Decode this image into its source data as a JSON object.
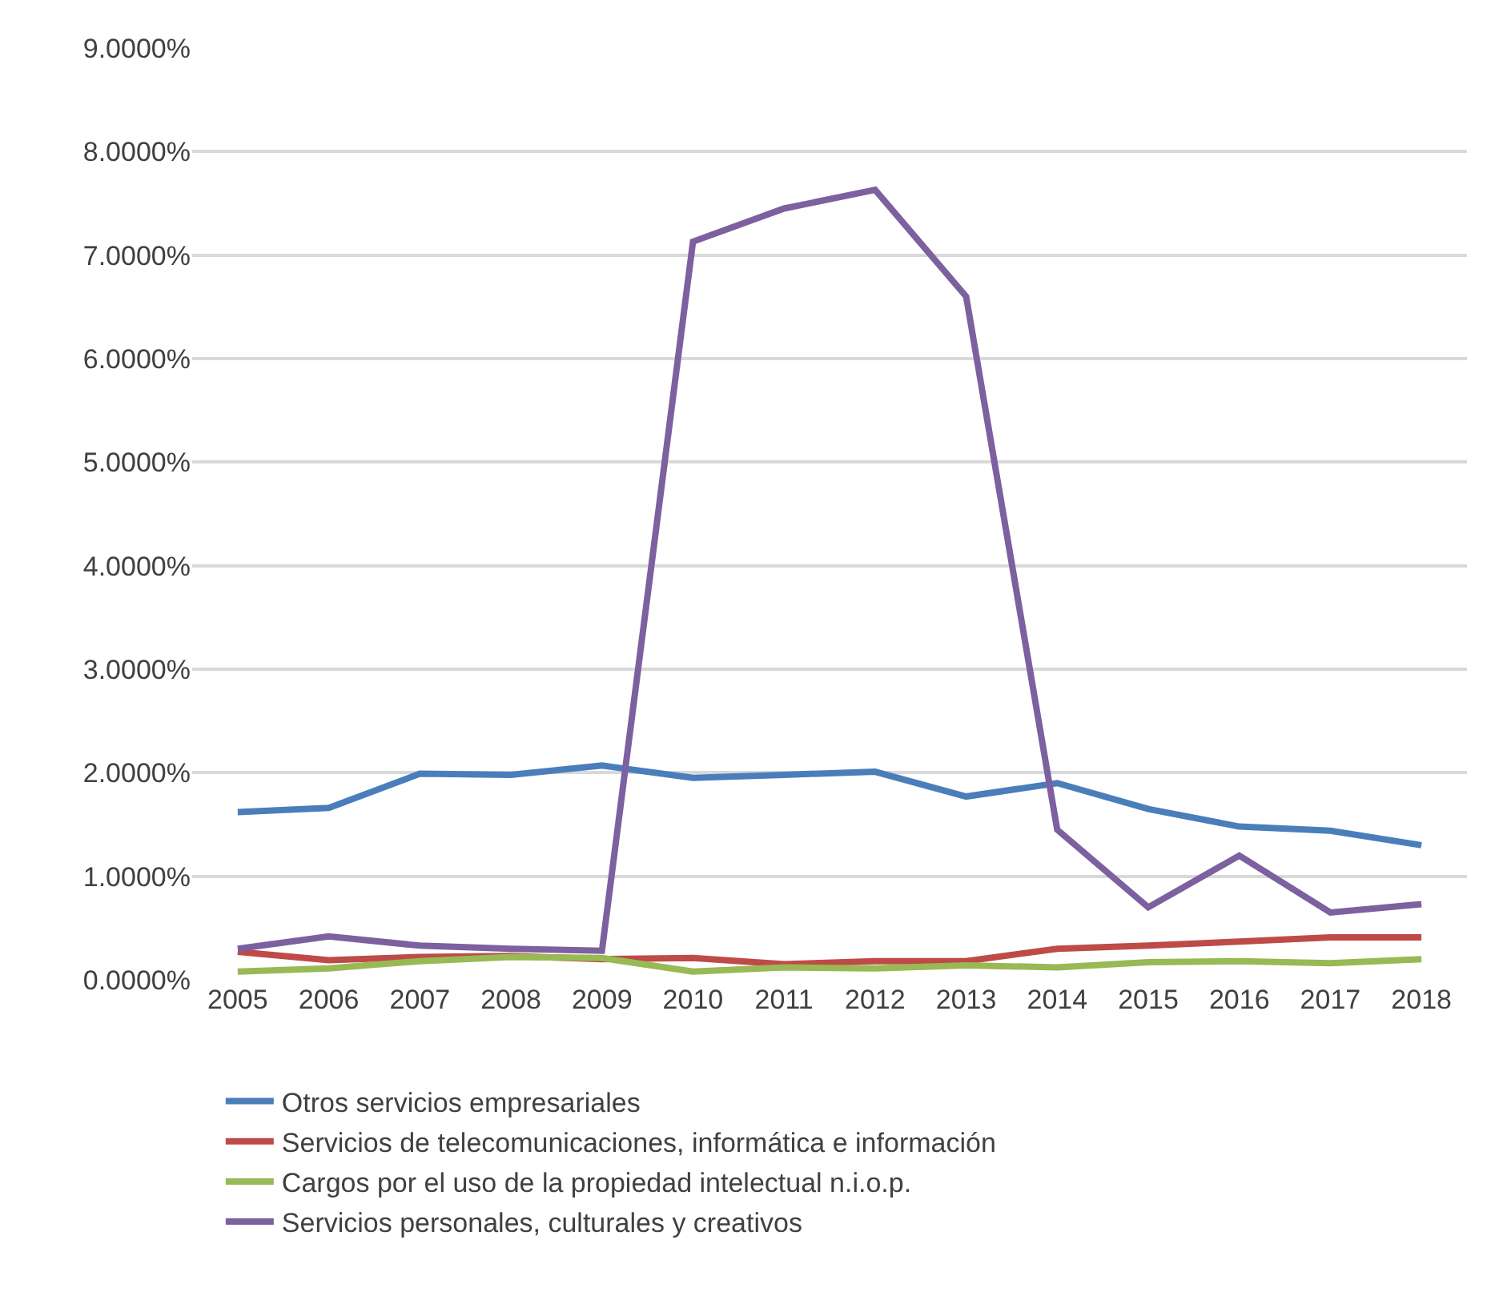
{
  "chart_data": {
    "type": "line",
    "categories": [
      "2005",
      "2006",
      "2007",
      "2008",
      "2009",
      "2010",
      "2011",
      "2012",
      "2013",
      "2014",
      "2015",
      "2016",
      "2017",
      "2018"
    ],
    "series": [
      {
        "name": "Otros servicios empresariales",
        "color": "#4a7ebb",
        "values": [
          1.62,
          1.66,
          1.99,
          1.98,
          2.07,
          1.95,
          1.98,
          2.01,
          1.77,
          1.9,
          1.65,
          1.48,
          1.44,
          1.3
        ]
      },
      {
        "name": "Servicios de telecomunicaciones, informática e información",
        "color": "#be4b48",
        "values": [
          0.27,
          0.19,
          0.22,
          0.23,
          0.2,
          0.21,
          0.15,
          0.18,
          0.18,
          0.3,
          0.33,
          0.37,
          0.41,
          0.41
        ]
      },
      {
        "name": "Cargos por el uso de la propiedad intelectual n.i.o.p.",
        "color": "#98b954",
        "values": [
          0.08,
          0.11,
          0.18,
          0.22,
          0.21,
          0.08,
          0.12,
          0.11,
          0.14,
          0.12,
          0.17,
          0.18,
          0.16,
          0.2
        ]
      },
      {
        "name": "Servicios personales, culturales y creativos",
        "color": "#7d60a0",
        "values": [
          0.3,
          0.42,
          0.33,
          0.3,
          0.28,
          7.13,
          7.45,
          7.63,
          6.6,
          1.45,
          0.7,
          1.2,
          0.65,
          0.73
        ]
      }
    ],
    "ylim": [
      0,
      9
    ],
    "yticks": [
      {
        "value": 0,
        "label": "0.0000%"
      },
      {
        "value": 1,
        "label": "1.0000%"
      },
      {
        "value": 2,
        "label": "2.0000%"
      },
      {
        "value": 3,
        "label": "3.0000%"
      },
      {
        "value": 4,
        "label": "4.0000%"
      },
      {
        "value": 5,
        "label": "5.0000%"
      },
      {
        "value": 6,
        "label": "6.0000%"
      },
      {
        "value": 7,
        "label": "7.0000%"
      },
      {
        "value": 8,
        "label": "8.0000%"
      },
      {
        "value": 9,
        "label": "9.0000%"
      }
    ],
    "grid": "y",
    "legend": "bottom",
    "marker": "none",
    "line_style": "solid"
  }
}
